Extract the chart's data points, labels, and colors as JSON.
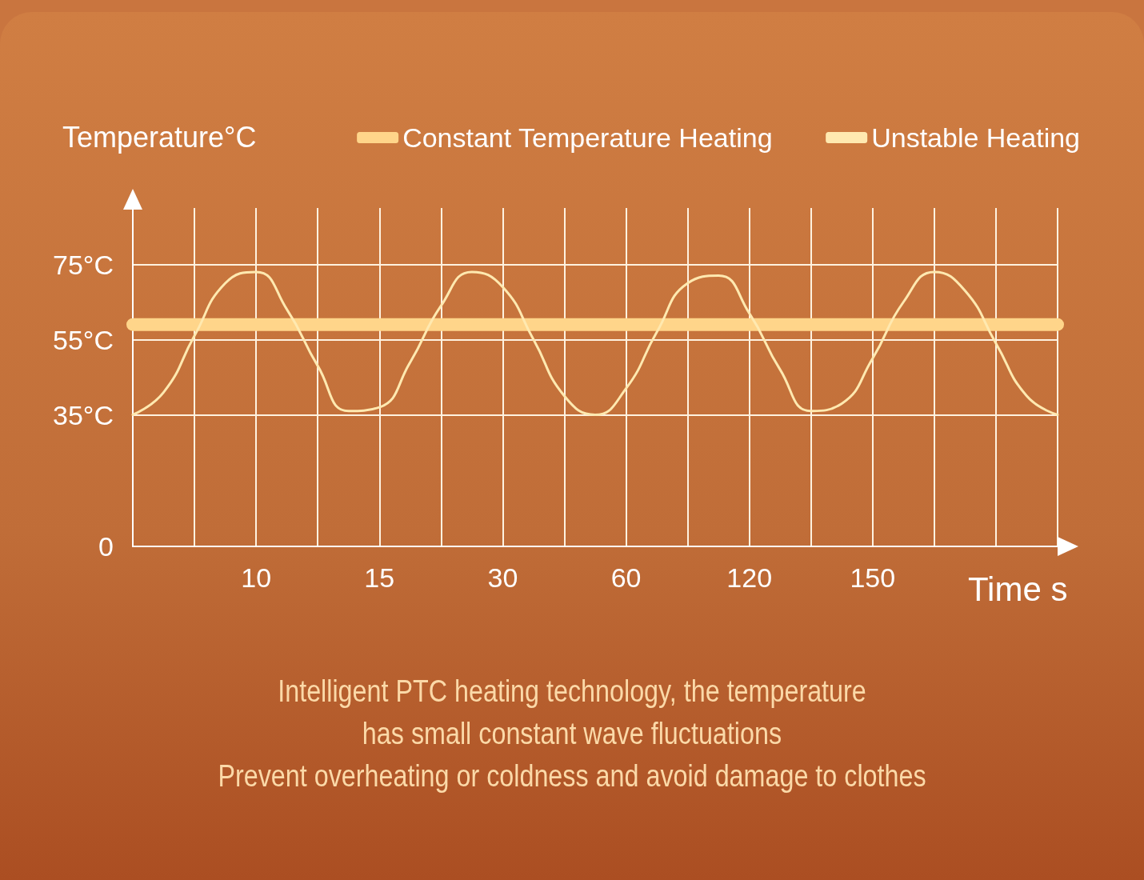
{
  "chart_data": {
    "type": "line",
    "xlabel": "Time s",
    "ylabel": "Temperature°C",
    "annotations": [
      "Intelligent PTC heating technology, the temperature",
      "has small constant wave fluctuations",
      "Prevent overheating or coldness and avoid damage to clothes"
    ],
    "categories": [
      null,
      null,
      null,
      null,
      "10",
      null,
      null,
      null,
      "15",
      null,
      null,
      null,
      "30",
      null,
      null,
      null,
      "60",
      null,
      null,
      null,
      "120",
      null,
      null,
      null,
      "150",
      null,
      null,
      null,
      null,
      null,
      null
    ],
    "ylim": [
      0,
      90
    ],
    "yticks": [
      0,
      {
        "value": 35,
        "label": "35°C"
      },
      {
        "value": 55,
        "label": "55°C"
      },
      {
        "value": 75,
        "label": "75°C"
      }
    ],
    "grid": true,
    "legend": "top right",
    "marker": "none",
    "line_style": "solid",
    "series": [
      {
        "name": "Constant Temperature Heating",
        "color": "#ffd58a",
        "values": [
          59,
          59,
          59,
          59,
          59,
          59,
          59,
          59,
          59,
          59,
          59,
          59,
          59,
          59,
          59,
          59,
          59,
          59,
          59,
          59,
          59,
          59,
          59,
          59,
          59,
          59,
          59,
          59,
          59,
          59,
          59
        ]
      },
      {
        "name": "Unstable Heating",
        "color": "#ffe9b0",
        "values": [
          35,
          41,
          56,
          70,
          73,
          63,
          48,
          36,
          37,
          49,
          64,
          73,
          69,
          55,
          40,
          35,
          42,
          57,
          70,
          72,
          62,
          47,
          36,
          38,
          50,
          65,
          73,
          68,
          54,
          40,
          35
        ]
      }
    ]
  }
}
